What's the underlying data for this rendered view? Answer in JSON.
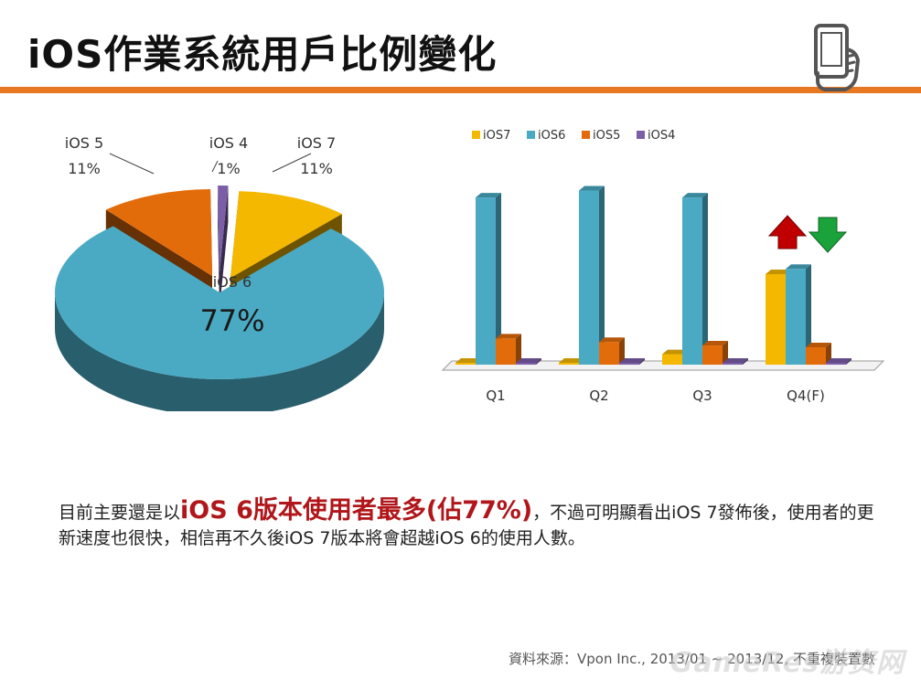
{
  "slide": {
    "title": "iOS作業系統用戶比例變化",
    "body_prefix": "目前主要還是以",
    "body_highlight": "iOS 6版本使用者最多(佔77%)",
    "body_suffix": "，不過可明顯看出iOS 7發佈後，使用者的更新速度也很快，相信再不久後iOS 7版本將會超越iOS 6的使用人數。",
    "source": "資料來源：Vpon Inc., 2013/01 ~ 2013/12, 不重複裝置數",
    "watermark": "GameRes游资网",
    "icon": "hand-holding-phone-icon"
  },
  "colors": {
    "accent": "#e87722",
    "ios7": "#f5b800",
    "ios6": "#4aaac4",
    "ios5": "#e36c0a",
    "ios4": "#7b5ea7",
    "arrow_up": "#c00000",
    "arrow_down": "#1aa33a"
  },
  "chart_data": [
    {
      "type": "pie",
      "slices": [
        {
          "name": "iOS 7",
          "label": "iOS 7",
          "value_label": "11%",
          "value": 11
        },
        {
          "name": "iOS 6",
          "label": "iOS 6",
          "value_label": "77%",
          "value": 77
        },
        {
          "name": "iOS 5",
          "label": "iOS 5",
          "value_label": "11%",
          "value": 11
        },
        {
          "name": "iOS 4",
          "label": "iOS 4",
          "value_label": "1%",
          "value": 1
        }
      ]
    },
    {
      "type": "bar",
      "categories": [
        "Q1",
        "Q2",
        "Q3",
        "Q4(F)"
      ],
      "series": [
        {
          "name": "iOS7",
          "values": [
            0,
            0,
            6,
            52
          ]
        },
        {
          "name": "iOS6",
          "values": [
            96,
            100,
            96,
            55
          ]
        },
        {
          "name": "iOS5",
          "values": [
            15,
            13,
            11,
            10
          ]
        },
        {
          "name": "iOS4",
          "values": [
            1,
            1,
            1,
            1
          ]
        }
      ],
      "ylim": [
        0,
        105
      ],
      "legend": "top-left",
      "annotations": [
        "up-arrow above Q4(F) iOS7",
        "down-arrow above Q4(F) iOS6"
      ]
    }
  ]
}
